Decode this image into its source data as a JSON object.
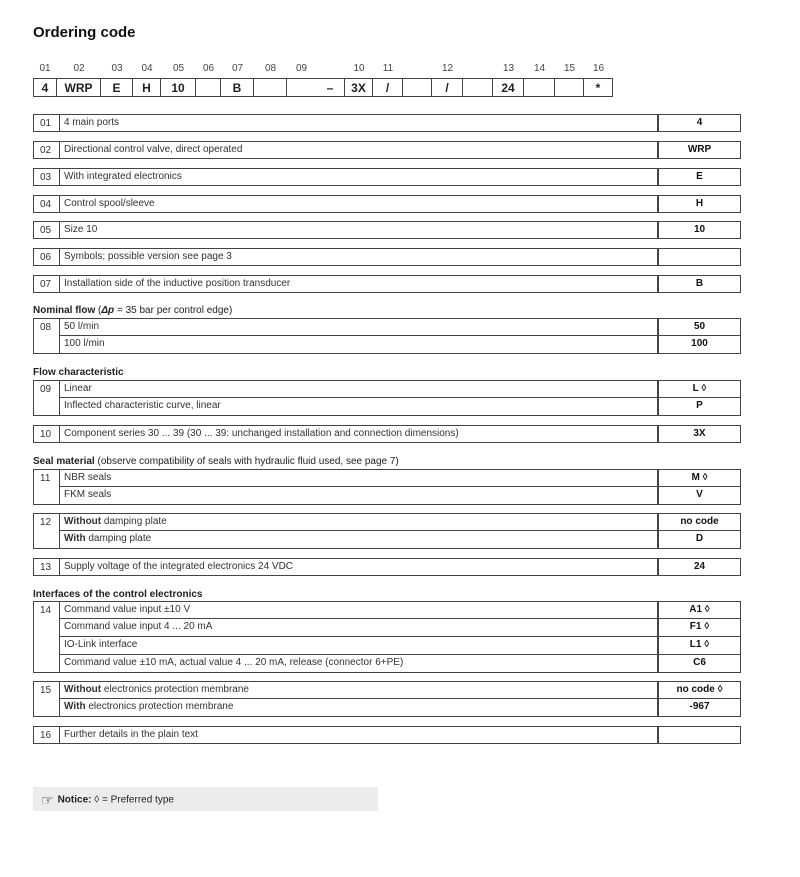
{
  "title": "Ordering code",
  "code_positions": [
    "01",
    "02",
    "03",
    "04",
    "05",
    "06",
    "07",
    "08",
    "09",
    "10",
    "11",
    "12",
    "13",
    "14",
    "15",
    "16"
  ],
  "code_boxes": [
    "4",
    "WRP",
    "E",
    "H",
    "10",
    "",
    "B",
    "",
    "",
    "–",
    "3X",
    "/",
    "",
    "/",
    "",
    "24",
    "",
    "",
    "*"
  ],
  "groups": [
    {
      "num": "01",
      "rows": [
        {
          "text": "4 main ports",
          "code": "4"
        }
      ]
    },
    {
      "num": "02",
      "rows": [
        {
          "text": "Directional control valve, direct operated",
          "code": "WRP"
        }
      ]
    },
    {
      "num": "03",
      "rows": [
        {
          "text": "With integrated electronics",
          "code": "E"
        }
      ]
    },
    {
      "num": "04",
      "rows": [
        {
          "text": "Control spool/sleeve",
          "code": "H"
        }
      ]
    },
    {
      "num": "05",
      "rows": [
        {
          "text": "Size 10",
          "code": "10"
        }
      ]
    },
    {
      "num": "06",
      "rows": [
        {
          "text": "Symbols; possible version see page 3",
          "code": ""
        }
      ]
    },
    {
      "num": "07",
      "rows": [
        {
          "text": "Installation side of the inductive position transducer",
          "code": "B"
        }
      ]
    },
    {
      "num": "08",
      "heading": {
        "bold": "Nominal flow",
        "pre": " (",
        "bolditalic": "Δp",
        "rest": " = 35 bar per control edge)"
      },
      "rows": [
        {
          "text": "50 l/min",
          "code": "50"
        },
        {
          "text": "100 l/min",
          "code": "100"
        }
      ]
    },
    {
      "num": "09",
      "heading": {
        "bold": "Flow characteristic"
      },
      "rows": [
        {
          "text": "Linear",
          "code": "L ◊"
        },
        {
          "text": "Inflected characteristic curve, linear",
          "code": "P"
        }
      ]
    },
    {
      "num": "10",
      "rows": [
        {
          "text": "Component series 30 ... 39 (30 ... 39: unchanged installation and connection dimensions)",
          "code": "3X"
        }
      ]
    },
    {
      "num": "11",
      "heading": {
        "bold": "Seal material",
        "rest": " (observe compatibility of seals with hydraulic fluid used, see page 7)"
      },
      "rows": [
        {
          "text": "NBR seals",
          "code": "M ◊"
        },
        {
          "text": "FKM seals",
          "code": "V"
        }
      ]
    },
    {
      "num": "12",
      "rows": [
        {
          "bold": "Without",
          "text": " damping plate",
          "code": "no code"
        },
        {
          "bold": "With",
          "text": " damping plate",
          "code": "D"
        }
      ]
    },
    {
      "num": "13",
      "rows": [
        {
          "text": "Supply voltage of the integrated electronics 24 VDC",
          "code": "24"
        }
      ]
    },
    {
      "num": "14",
      "heading": {
        "bold": "Interfaces of the control electronics"
      },
      "rows": [
        {
          "text": "Command value input ±10 V",
          "code": "A1 ◊"
        },
        {
          "text": "Command value input 4 ... 20 mA",
          "code": "F1 ◊"
        },
        {
          "text": "IO-Link interface",
          "code": "L1 ◊"
        },
        {
          "text": "Command value ±10 mA, actual value 4 ... 20 mA, release (connector 6+PE)",
          "code": "C6"
        }
      ]
    },
    {
      "num": "15",
      "rows": [
        {
          "bold": "Without",
          "text": " electronics protection membrane",
          "code": "no code ◊"
        },
        {
          "bold": "With",
          "text": " electronics protection membrane",
          "code": "-967"
        }
      ]
    },
    {
      "num": "16",
      "rows": [
        {
          "text": "Further details in the plain text",
          "code": ""
        }
      ]
    }
  ],
  "notice": {
    "icon": "pointing-hand-icon",
    "label": "Notice:",
    "text": "◊ = Preferred type"
  }
}
